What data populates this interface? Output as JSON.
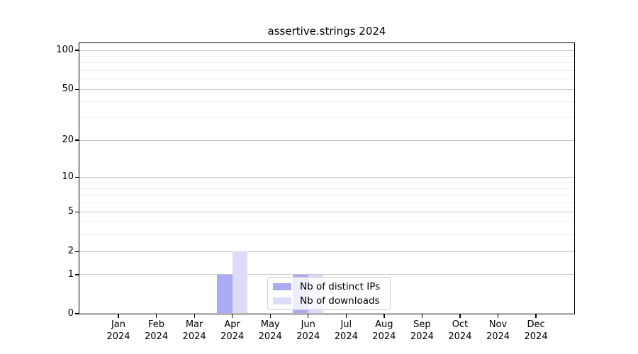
{
  "title": "assertive.strings 2024",
  "chart_data": {
    "type": "bar",
    "title": "assertive.strings 2024",
    "xlabel": "",
    "ylabel": "",
    "categories": [
      "Jan",
      "Feb",
      "Mar",
      "Apr",
      "May",
      "Jun",
      "Jul",
      "Aug",
      "Sep",
      "Oct",
      "Nov",
      "Dec"
    ],
    "year_label": "2024",
    "series": [
      {
        "name": "Nb of distinct IPs",
        "color": "#aaaaf5",
        "values": [
          0,
          0,
          0,
          1,
          0,
          1,
          0,
          0,
          0,
          0,
          0,
          0
        ]
      },
      {
        "name": "Nb of downloads",
        "color": "#dcdcf9",
        "values": [
          0,
          0,
          0,
          2,
          0,
          1,
          0,
          0,
          0,
          0,
          0,
          0
        ]
      }
    ],
    "yscale": "log1p",
    "yticks": [
      0,
      1,
      2,
      5,
      10,
      20,
      50,
      100
    ],
    "yminor": [
      3,
      4,
      6,
      7,
      8,
      9,
      30,
      40,
      60,
      70,
      80,
      90
    ],
    "ylim": [
      0,
      113
    ],
    "grid": true,
    "legend_position": "bottom-center-inside",
    "colors": {
      "axis": "#000000",
      "major_grid": "#c6c6c6",
      "minor_grid": "#ededed",
      "legend_border": "#cccccc"
    }
  }
}
